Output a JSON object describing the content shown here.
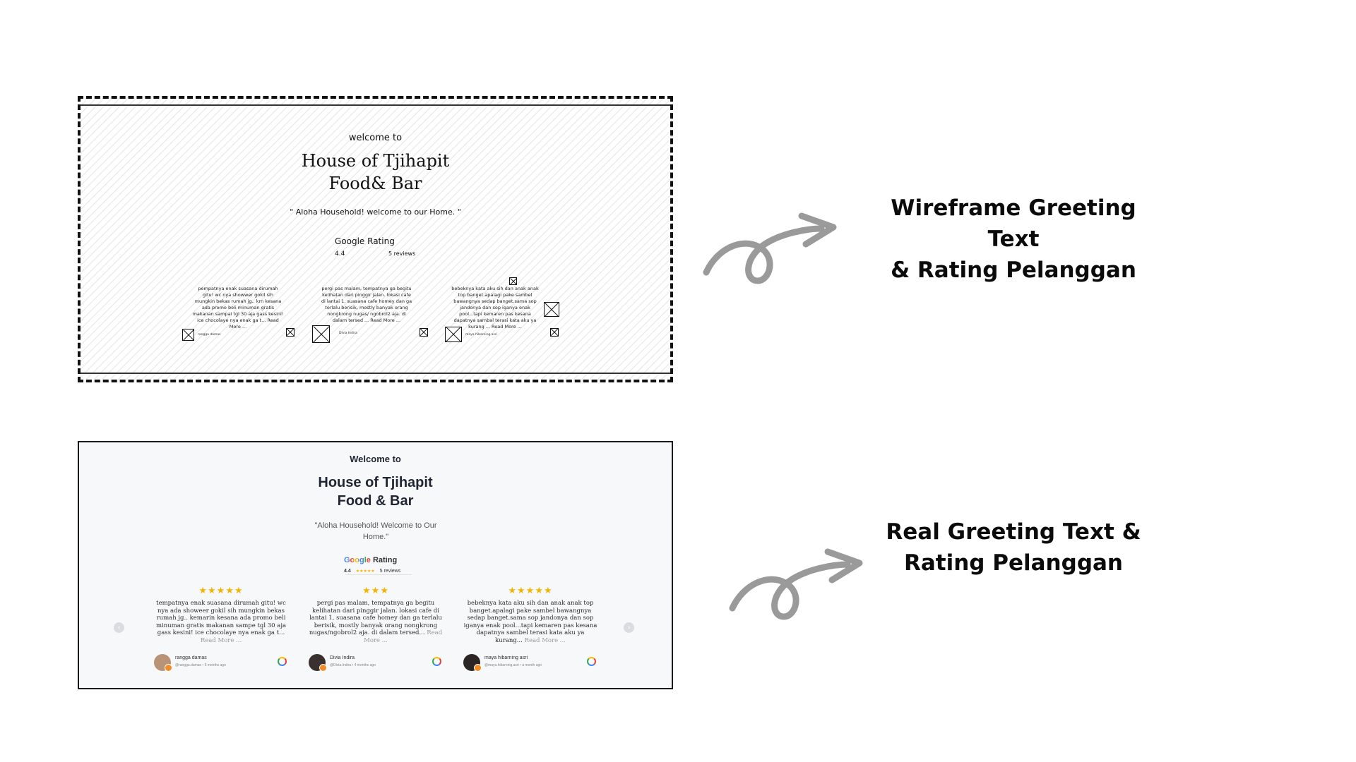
{
  "wireframe": {
    "welcome": "welcome to",
    "title_line1": "House of Tjihapit",
    "title_line2": "Food& Bar",
    "quote": "\" Aloha Household! welcome to our Home. \"",
    "rating_label": "Google Rating",
    "rating_value": "4.4",
    "rating_count": "5 reviews",
    "reviews": [
      {
        "text": "pempatnya enak suasana dirumah gitu! wc nya showwer gokil sih mungkin bekas rumah jg.. krn kesana ada promo beli minuman gratis makanan sampai tgl 30 aja gass kesini! ice chocolaye nya enak ga t... Read More ...",
        "author": "rangga damas"
      },
      {
        "text": "pergi pas malam, tempatnya ga begitu kelihatan dari pinggir jalan. lokasi cafe di lantai 1, suasana cafe homey dan ga terlalu berisik, mostly banyak orang nongkrong nugas/ ngobrol2 aja. di dalam tersed ... Read More ...",
        "author": "Divia Indira"
      },
      {
        "text": "bebeknya kata aku sih dan anak anak top banget.apalagi pake sambel bawangnya sedap banget.sama sop jandonya dan sop iganya enak pool...tapi kemaren pas kesana dapatnya sambal terasi kata aku ya kurang ... Read More ...",
        "author": "maya hibarning asri"
      }
    ]
  },
  "real": {
    "welcome": "Welcome to",
    "title_line1": "House of Tjihapit",
    "title_line2": "Food & Bar",
    "quote": "\"Aloha Household! Welcome to Our Home.\"",
    "rating_brand": "Google",
    "rating_word": "Rating",
    "rating_value": "4.4",
    "rating_stars": "★★★★★",
    "rating_count": "5 reviews",
    "prev_icon": "‹",
    "next_icon": "›",
    "reviews": [
      {
        "stars": "★★★★★",
        "text": "tempatnya enak suasana dirumah gitu! wc nya ada showeer gokil sih mungkin bekas rumah jg.. kemarin kesana ada promo beli minuman gratis makanan sampe tgl 30 aja gass kesini! ice chocolaye nya enak ga t...",
        "more": "Read More ...",
        "author": "rangga damas",
        "meta": "@rangga.damas • 5 months ago"
      },
      {
        "stars": "★★★",
        "text": "pergi pas malam, tempatnya ga begitu kelihatan dari pinggir jalan. lokasi cafe di lantai 1, suasana cafe homey dan ga terlalu berisik, mostly banyak orang nongkrong nugas/ngobrol2 aja. di dalam tersed...",
        "more": "Read More ...",
        "author": "Divia Indira",
        "meta": "@Divia.Indira • 4 months ago"
      },
      {
        "stars": "★★★★★",
        "text": "bebeknya kata aku sih dan anak anak top banget.apalagi pake sambel bawangnya sedap banget.sama sop jandonya dan sop iganya enak pool...tapi kemaren pas kesana dapatnya sambel terasi kata aku ya kurang...",
        "more": "Read More ...",
        "author": "maya hibarning asri",
        "meta": "@maya.hibarning.asri • a month ago"
      }
    ]
  },
  "captions": {
    "wireframe_line1": "Wireframe Greeting Text",
    "wireframe_line2": "& Rating Pelanggan",
    "real_line1": "Real Greeting Text &",
    "real_line2": "Rating Pelanggan"
  },
  "colors": {
    "star": "#f4b400",
    "arrow": "#9a9a9a",
    "google_blue": "#4285f4",
    "google_red": "#ea4335"
  }
}
